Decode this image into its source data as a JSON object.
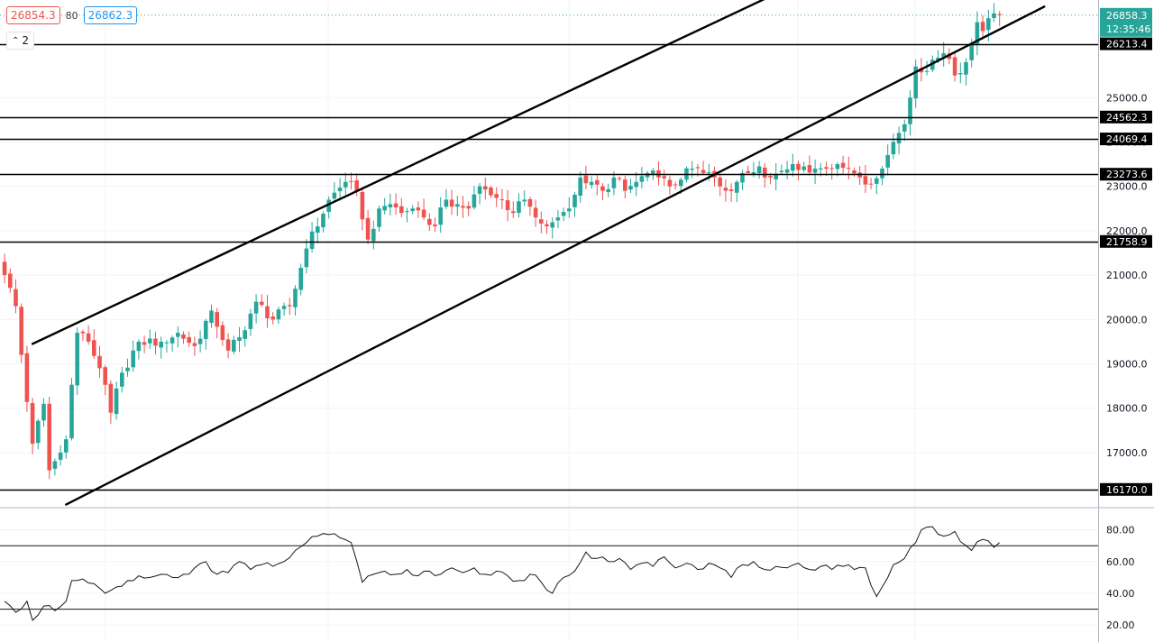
{
  "header": {
    "bid_price": "26854.3",
    "spread": "80",
    "ask_price": "26862.3",
    "indicator_toggle_count": "2",
    "indicator_toggle_icon": "chevron-up-icon"
  },
  "colors": {
    "up": "#26a69a",
    "down": "#ef5350",
    "drawing": "#000000",
    "grid": "#f0f3fa",
    "axis_text": "#131722",
    "last_price_bg": "#26a69a"
  },
  "chart_data": [
    {
      "type": "candlestick",
      "title": "",
      "ylim": [
        15800,
        27200
      ],
      "y_ticks": [
        "17000.0",
        "18000.0",
        "19000.0",
        "20000.0",
        "21000.0",
        "22000.0",
        "23000.0",
        "24000.0",
        "25000.0"
      ],
      "grid": true,
      "last_price": {
        "label": "26858.3",
        "value": 26858.3,
        "countdown": "12:35:46"
      },
      "horizontal_levels": [
        {
          "label": "26213.4",
          "value": 26213.4
        },
        {
          "label": "24562.3",
          "value": 24562.3
        },
        {
          "label": "24069.4",
          "value": 24069.4
        },
        {
          "label": "23273.6",
          "value": 23273.6
        },
        {
          "label": "21758.9",
          "value": 21758.9
        },
        {
          "label": "16170.0",
          "value": 16170.0
        }
      ],
      "trend_lines": [
        {
          "name": "channel-upper",
          "points": [
            [
              5,
              19450
            ],
            [
              144,
              27700
            ]
          ]
        },
        {
          "name": "channel-lower",
          "points": [
            [
              11,
              15830
            ],
            [
              186,
              27050
            ]
          ]
        }
      ],
      "close_path": [
        [
          0,
          21000
        ],
        [
          2,
          20300
        ],
        [
          3,
          19200
        ],
        [
          5,
          17200
        ],
        [
          7,
          18100
        ],
        [
          8,
          16600
        ],
        [
          10,
          17000
        ],
        [
          11,
          17300
        ],
        [
          13,
          19700
        ],
        [
          15,
          19500
        ],
        [
          17,
          18900
        ],
        [
          19,
          17900
        ],
        [
          21,
          18800
        ],
        [
          24,
          19500
        ],
        [
          28,
          19500
        ],
        [
          31,
          19700
        ],
        [
          34,
          19400
        ],
        [
          37,
          20200
        ],
        [
          40,
          19300
        ],
        [
          42,
          19600
        ],
        [
          45,
          20400
        ],
        [
          48,
          20000
        ],
        [
          51,
          20300
        ],
        [
          54,
          21600
        ],
        [
          58,
          22700
        ],
        [
          61,
          23100
        ],
        [
          63,
          22900
        ],
        [
          65,
          21800
        ],
        [
          67,
          22500
        ],
        [
          69,
          22600
        ],
        [
          71,
          22400
        ],
        [
          73,
          22500
        ],
        [
          75,
          22300
        ],
        [
          77,
          22100
        ],
        [
          79,
          22700
        ],
        [
          81,
          22600
        ],
        [
          83,
          22500
        ],
        [
          85,
          23000
        ],
        [
          87,
          22800
        ],
        [
          89,
          22700
        ],
        [
          91,
          22400
        ],
        [
          93,
          22700
        ],
        [
          95,
          22300
        ],
        [
          97,
          22100
        ],
        [
          99,
          22300
        ],
        [
          101,
          22500
        ],
        [
          103,
          23200
        ],
        [
          105,
          23100
        ],
        [
          107,
          22900
        ],
        [
          109,
          23200
        ],
        [
          111,
          22900
        ],
        [
          113,
          23100
        ],
        [
          115,
          23300
        ],
        [
          117,
          23200
        ],
        [
          119,
          23000
        ],
        [
          121,
          23150
        ],
        [
          123,
          23400
        ],
        [
          125,
          23300
        ],
        [
          127,
          23200
        ],
        [
          129,
          22900
        ],
        [
          131,
          23100
        ],
        [
          133,
          23300
        ],
        [
          135,
          23450
        ],
        [
          137,
          23200
        ],
        [
          139,
          23350
        ],
        [
          141,
          23500
        ],
        [
          143,
          23450
        ],
        [
          145,
          23400
        ],
        [
          147,
          23400
        ],
        [
          149,
          23500
        ],
        [
          151,
          23400
        ],
        [
          153,
          23200
        ],
        [
          155,
          23050
        ],
        [
          157,
          23400
        ],
        [
          159,
          24000
        ],
        [
          161,
          24400
        ],
        [
          162,
          25000
        ],
        [
          163,
          25700
        ],
        [
          165,
          25600
        ],
        [
          167,
          25900
        ],
        [
          168,
          26000
        ],
        [
          170,
          25500
        ],
        [
          172,
          25800
        ],
        [
          174,
          26700
        ],
        [
          175,
          26500
        ],
        [
          177,
          26900
        ],
        [
          178,
          26858.3
        ]
      ]
    },
    {
      "type": "line",
      "title": "",
      "ylim": [
        15,
        90
      ],
      "y_ticks": [
        "20.00",
        "40.00",
        "60.00",
        "80.00"
      ],
      "horizontal_levels": [
        70,
        30
      ],
      "path": [
        [
          0,
          35
        ],
        [
          2,
          28
        ],
        [
          4,
          35
        ],
        [
          5,
          23
        ],
        [
          7,
          32
        ],
        [
          9,
          29
        ],
        [
          11,
          35
        ],
        [
          12,
          48
        ],
        [
          14,
          49
        ],
        [
          16,
          46
        ],
        [
          18,
          40
        ],
        [
          20,
          44
        ],
        [
          22,
          48
        ],
        [
          24,
          51
        ],
        [
          26,
          50
        ],
        [
          28,
          52
        ],
        [
          30,
          50
        ],
        [
          32,
          52
        ],
        [
          34,
          56
        ],
        [
          36,
          60
        ],
        [
          38,
          52
        ],
        [
          40,
          53
        ],
        [
          42,
          60
        ],
        [
          44,
          55
        ],
        [
          46,
          58
        ],
        [
          48,
          57
        ],
        [
          50,
          60
        ],
        [
          52,
          67
        ],
        [
          54,
          72
        ],
        [
          56,
          76
        ],
        [
          58,
          77
        ],
        [
          60,
          75
        ],
        [
          62,
          72
        ],
        [
          64,
          47
        ],
        [
          66,
          52
        ],
        [
          68,
          54
        ],
        [
          70,
          52
        ],
        [
          72,
          55
        ],
        [
          74,
          51
        ],
        [
          76,
          54
        ],
        [
          78,
          52
        ],
        [
          80,
          56
        ],
        [
          82,
          53
        ],
        [
          84,
          56
        ],
        [
          86,
          52
        ],
        [
          88,
          54
        ],
        [
          90,
          51
        ],
        [
          92,
          48
        ],
        [
          94,
          52
        ],
        [
          96,
          47
        ],
        [
          98,
          40
        ],
        [
          100,
          50
        ],
        [
          102,
          54
        ],
        [
          104,
          66
        ],
        [
          106,
          62
        ],
        [
          108,
          60
        ],
        [
          110,
          62
        ],
        [
          112,
          55
        ],
        [
          114,
          59
        ],
        [
          116,
          57
        ],
        [
          118,
          63
        ],
        [
          120,
          56
        ],
        [
          122,
          59
        ],
        [
          124,
          55
        ],
        [
          126,
          59
        ],
        [
          128,
          56
        ],
        [
          130,
          50
        ],
        [
          132,
          58
        ],
        [
          134,
          60
        ],
        [
          136,
          55
        ],
        [
          138,
          57
        ],
        [
          140,
          56
        ],
        [
          142,
          59
        ],
        [
          144,
          55
        ],
        [
          146,
          57
        ],
        [
          148,
          55
        ],
        [
          150,
          57
        ],
        [
          152,
          55
        ],
        [
          154,
          56
        ],
        [
          155,
          45
        ],
        [
          156,
          38
        ],
        [
          157,
          44
        ],
        [
          159,
          58
        ],
        [
          161,
          62
        ],
        [
          163,
          72
        ],
        [
          164,
          80
        ],
        [
          166,
          82
        ],
        [
          168,
          76
        ],
        [
          170,
          79
        ],
        [
          172,
          70
        ],
        [
          173,
          67
        ],
        [
          175,
          74
        ],
        [
          176,
          73
        ],
        [
          177,
          69
        ],
        [
          178,
          72
        ]
      ]
    }
  ]
}
